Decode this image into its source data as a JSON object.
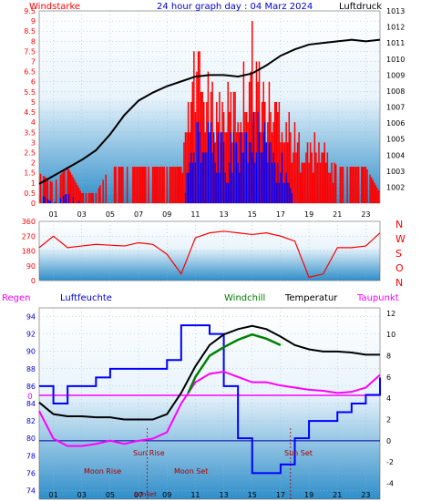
{
  "chart_data": [
    {
      "type": "line",
      "title": "24 hour graph day : 04 Marz 2024",
      "left_axis_label": "Windstarke",
      "right_axis_label": "Luftdruck",
      "left_ticks": [
        "0",
        "0.5",
        "1",
        "1.5",
        "2",
        "2.5",
        "3",
        "3.5",
        "4",
        "4.5",
        "5",
        "5.5",
        "6",
        "6.5",
        "7",
        "7.5",
        "8",
        "8.5",
        "9",
        "9.5"
      ],
      "right_ticks": [
        "1002",
        "1003",
        "1004",
        "1005",
        "1006",
        "1007",
        "1008",
        "1009",
        "1010",
        "1011",
        "1012",
        "1013"
      ],
      "x_ticks": [
        "01",
        "03",
        "05",
        "07",
        "09",
        "11",
        "13",
        "15",
        "17",
        "19",
        "21",
        "23"
      ],
      "left_range": [
        0,
        9.5
      ],
      "right_range": [
        1001,
        1013
      ],
      "pressure": {
        "x": [
          0,
          1,
          2,
          3,
          4,
          5,
          6,
          7,
          8,
          9,
          10,
          11,
          12,
          13,
          14,
          15,
          16,
          17,
          18,
          19,
          20,
          21,
          22,
          23,
          24
        ],
        "y": [
          1002.2,
          1002.7,
          1003.2,
          1003.7,
          1004.3,
          1005.3,
          1006.5,
          1007.4,
          1007.9,
          1008.3,
          1008.6,
          1008.9,
          1009.0,
          1009.0,
          1008.9,
          1009.1,
          1009.6,
          1010.2,
          1010.6,
          1010.9,
          1011.0,
          1011.1,
          1011.2,
          1011.1,
          1011.2
        ]
      },
      "wind_gust": {
        "x": [
          0,
          1,
          2,
          3,
          4,
          5,
          6,
          7,
          8,
          9,
          10,
          11,
          12,
          13,
          14,
          15,
          16,
          17,
          18,
          19,
          20,
          21,
          22,
          23,
          24
        ],
        "y": [
          1.5,
          1.0,
          1.8,
          0.5,
          0.5,
          1.8,
          1.8,
          1.8,
          1.8,
          1.8,
          1.8,
          7.5,
          5.5,
          5.5,
          5.5,
          8.5,
          5.5,
          5.5,
          3.5,
          3.0,
          3.0,
          1.8,
          1.8,
          1.8,
          0.5
        ]
      },
      "wind_avg": {
        "x": [
          0,
          1,
          2,
          3,
          4,
          5,
          6,
          7,
          8,
          9,
          10,
          11,
          12,
          13,
          14,
          15,
          16,
          17,
          18,
          19,
          20,
          21,
          22,
          23,
          24
        ],
        "y": [
          0.5,
          0,
          0.5,
          0,
          0,
          0,
          0,
          0,
          0,
          0,
          0,
          4.0,
          3.5,
          3.5,
          3.5,
          4.5,
          3.5,
          2.5,
          0,
          0,
          0,
          0,
          0,
          0,
          0
        ]
      }
    },
    {
      "type": "line",
      "ylabel_letters": [
        "N",
        "W",
        "S",
        "O",
        "N"
      ],
      "y_ticks": [
        "0",
        "90",
        "180",
        "270",
        "360"
      ],
      "y_range": [
        0,
        360
      ],
      "direction": {
        "x": [
          0,
          1,
          2,
          3,
          4,
          5,
          6,
          7,
          8,
          9,
          10,
          11,
          12,
          13,
          14,
          15,
          16,
          17,
          18,
          19,
          20,
          21,
          22,
          23,
          24
        ],
        "y": [
          200,
          270,
          200,
          210,
          220,
          215,
          210,
          230,
          220,
          160,
          40,
          260,
          290,
          300,
          290,
          280,
          290,
          270,
          240,
          20,
          40,
          200,
          200,
          210,
          290
        ]
      }
    },
    {
      "type": "line",
      "legend": [
        "Regen",
        "Luftfeuchte",
        "Windchill",
        "Temperatur",
        "Taupunkt"
      ],
      "left_ticks": [
        "74",
        "76",
        "78",
        "80",
        "82",
        "84",
        "86",
        "88",
        "90",
        "92",
        "94"
      ],
      "left_range": [
        73,
        95
      ],
      "right_ticks": [
        "-4",
        "-2",
        "0",
        "2",
        "4",
        "6",
        "8",
        "10",
        "12"
      ],
      "right_range": [
        -5.5,
        12.5
      ],
      "rain_zero_label": "0",
      "annotations": [
        "Sun Rise",
        "Sun Set",
        "Moon Rise",
        "Moon Set",
        "SunSet"
      ],
      "humidity": {
        "x": [
          0,
          1,
          2,
          3,
          4,
          5,
          6,
          7,
          8,
          9,
          10,
          11,
          12,
          13,
          14,
          15,
          16,
          17,
          18,
          19,
          20,
          21,
          22,
          23,
          24
        ],
        "y": [
          86,
          84,
          86,
          86,
          87,
          88,
          88,
          88,
          88,
          89,
          93,
          93,
          92,
          86,
          80,
          76,
          76,
          77,
          80,
          82,
          82,
          83,
          84,
          85,
          87
        ]
      },
      "temperature": {
        "x": [
          0,
          1,
          2,
          3,
          4,
          5,
          6,
          7,
          8,
          9,
          10,
          11,
          12,
          13,
          14,
          15,
          16,
          17,
          18,
          19,
          20,
          21,
          22,
          23,
          24
        ],
        "y": [
          3.6,
          2.5,
          2.3,
          2.3,
          2.2,
          2.2,
          2.0,
          2.0,
          2.0,
          2.5,
          4.5,
          7.0,
          9.0,
          10.0,
          10.5,
          10.8,
          10.5,
          9.8,
          9.0,
          8.6,
          8.4,
          8.4,
          8.3,
          8.1,
          8.1
        ]
      },
      "dewpoint": {
        "x": [
          0,
          1,
          2,
          3,
          4,
          5,
          6,
          7,
          8,
          9,
          10,
          11,
          12,
          13,
          14,
          15,
          16,
          17,
          18,
          19,
          20,
          21,
          22,
          23,
          24
        ],
        "y": [
          2.8,
          0.2,
          -0.5,
          -0.5,
          -0.3,
          0.0,
          -0.3,
          0.0,
          0.2,
          0.8,
          3.5,
          5.5,
          6.3,
          6.5,
          6.0,
          5.5,
          5.5,
          5.2,
          5.0,
          4.8,
          4.7,
          4.5,
          4.6,
          5.0,
          6.2
        ]
      },
      "windchill": {
        "x": [
          10.5,
          11,
          12,
          13,
          14,
          15,
          16,
          17
        ],
        "y": [
          4.5,
          6.0,
          8.0,
          8.8,
          9.5,
          10.0,
          9.6,
          9.0
        ]
      }
    }
  ],
  "colors": {
    "wind_gust": "#ff0000",
    "wind_avg": "#0000ff",
    "pressure": "#000000",
    "humidity": "#0000ff",
    "temperature": "#000000",
    "dewpoint": "#ff00ff",
    "windchill": "#008000",
    "rain": "#ff00ff",
    "label_red": "#ff0000",
    "label_blue": "#0000ff"
  }
}
